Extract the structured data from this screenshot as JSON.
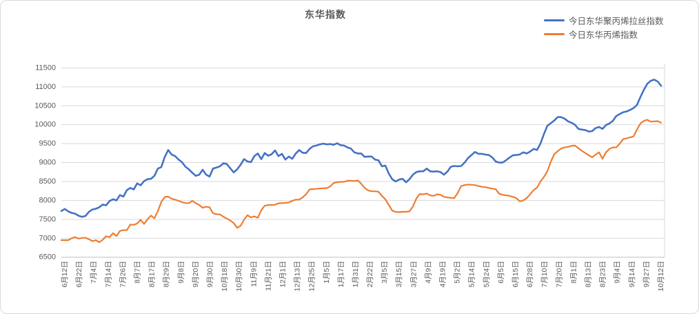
{
  "chart_data": {
    "type": "line",
    "title": "东华指数",
    "grid": true,
    "legend_position": "top-right",
    "x_tick_labels": [
      "6月12日",
      "6月22日",
      "7月4日",
      "7月14日",
      "7月26日",
      "8月7日",
      "8月17日",
      "8月29日",
      "9月8日",
      "9月20日",
      "9月30日",
      "10月18日",
      "10月30日",
      "11月9日",
      "11月21日",
      "12月1日",
      "12月13日",
      "12月25日",
      "1月5日",
      "1月17日",
      "1月31日",
      "2月22日",
      "3月5日",
      "3月15日",
      "3月27日",
      "4月9日",
      "4月19日",
      "5月2日",
      "5月14日",
      "5月24日",
      "6月5日",
      "6月15日",
      "6月28日",
      "7月10日",
      "7月20日",
      "8月1日",
      "8月13日",
      "8月23日",
      "9月4日",
      "9月14日",
      "9月27日",
      "10月12日"
    ],
    "y_axis": {
      "min": 6500,
      "max": 11500,
      "step": 500,
      "ticks": [
        6500,
        7000,
        7500,
        8000,
        8500,
        9000,
        9500,
        10000,
        10500,
        11000,
        11500
      ]
    },
    "series": [
      {
        "name": "今日东华聚丙烯拉丝指数",
        "color": "#4472C4",
        "values": [
          7720,
          7775,
          7710,
          7670,
          7650,
          7595,
          7565,
          7590,
          7700,
          7760,
          7780,
          7820,
          7890,
          7870,
          7985,
          8030,
          8000,
          8140,
          8100,
          8270,
          8330,
          8290,
          8450,
          8400,
          8510,
          8560,
          8570,
          8650,
          8840,
          8880,
          9150,
          9330,
          9210,
          9170,
          9080,
          9010,
          8890,
          8820,
          8730,
          8650,
          8680,
          8810,
          8680,
          8630,
          8840,
          8870,
          8900,
          8980,
          8960,
          8850,
          8740,
          8820,
          8940,
          9090,
          9030,
          9010,
          9170,
          9240,
          9090,
          9250,
          9180,
          9220,
          9320,
          9170,
          9230,
          9080,
          9160,
          9100,
          9240,
          9330,
          9260,
          9250,
          9360,
          9430,
          9450,
          9480,
          9500,
          9480,
          9490,
          9470,
          9510,
          9460,
          9450,
          9400,
          9370,
          9270,
          9240,
          9240,
          9150,
          9160,
          9160,
          9080,
          9060,
          8900,
          8920,
          8710,
          8560,
          8500,
          8550,
          8570,
          8480,
          8560,
          8680,
          8750,
          8770,
          8770,
          8840,
          8770,
          8760,
          8770,
          8750,
          8680,
          8760,
          8890,
          8910,
          8900,
          8910,
          9000,
          9120,
          9200,
          9280,
          9230,
          9230,
          9210,
          9200,
          9140,
          9030,
          9000,
          9000,
          9060,
          9130,
          9190,
          9200,
          9215,
          9270,
          9240,
          9290,
          9360,
          9330,
          9500,
          9750,
          9970,
          10040,
          10110,
          10200,
          10200,
          10160,
          10090,
          10050,
          10000,
          9890,
          9870,
          9860,
          9820,
          9830,
          9910,
          9940,
          9890,
          9990,
          10030,
          10100,
          10230,
          10280,
          10330,
          10350,
          10390,
          10440,
          10520,
          10730,
          10920,
          11080,
          11160,
          11190,
          11140,
          11030
        ]
      },
      {
        "name": "今日东华丙烯指数",
        "color": "#ED7D31",
        "values": [
          6950,
          6950,
          6950,
          7000,
          7030,
          6990,
          7010,
          7010,
          6975,
          6925,
          6950,
          6895,
          6960,
          7055,
          7030,
          7135,
          7060,
          7195,
          7215,
          7215,
          7360,
          7355,
          7390,
          7490,
          7380,
          7500,
          7600,
          7530,
          7720,
          7960,
          8090,
          8100,
          8045,
          8020,
          7990,
          7955,
          7930,
          7930,
          7990,
          7930,
          7880,
          7805,
          7835,
          7820,
          7660,
          7635,
          7630,
          7570,
          7520,
          7470,
          7400,
          7275,
          7330,
          7490,
          7610,
          7550,
          7580,
          7540,
          7740,
          7860,
          7880,
          7880,
          7885,
          7925,
          7930,
          7935,
          7945,
          7990,
          8020,
          8020,
          8080,
          8160,
          8290,
          8300,
          8305,
          8315,
          8320,
          8325,
          8370,
          8460,
          8480,
          8490,
          8490,
          8520,
          8520,
          8510,
          8530,
          8440,
          8330,
          8265,
          8240,
          8240,
          8230,
          8120,
          8030,
          7880,
          7730,
          7697,
          7690,
          7700,
          7700,
          7710,
          7840,
          8050,
          8170,
          8160,
          8180,
          8135,
          8120,
          8160,
          8150,
          8095,
          8080,
          8065,
          8060,
          8200,
          8380,
          8405,
          8420,
          8412,
          8405,
          8380,
          8360,
          8350,
          8330,
          8310,
          8300,
          8175,
          8150,
          8135,
          8120,
          8095,
          8060,
          7975,
          8000,
          8060,
          8160,
          8270,
          8340,
          8500,
          8620,
          8770,
          9020,
          9220,
          9300,
          9370,
          9400,
          9415,
          9440,
          9450,
          9380,
          9310,
          9250,
          9195,
          9140,
          9210,
          9270,
          9100,
          9270,
          9360,
          9400,
          9400,
          9500,
          9620,
          9640,
          9665,
          9690,
          9870,
          10030,
          10100,
          10130,
          10080,
          10090,
          10095,
          10050
        ]
      }
    ],
    "style": {
      "grid_color": "#d9d9d9",
      "axis_line_color": "#bfbfbf",
      "tick_label_color": "#595959",
      "title_color": "#595959"
    }
  }
}
